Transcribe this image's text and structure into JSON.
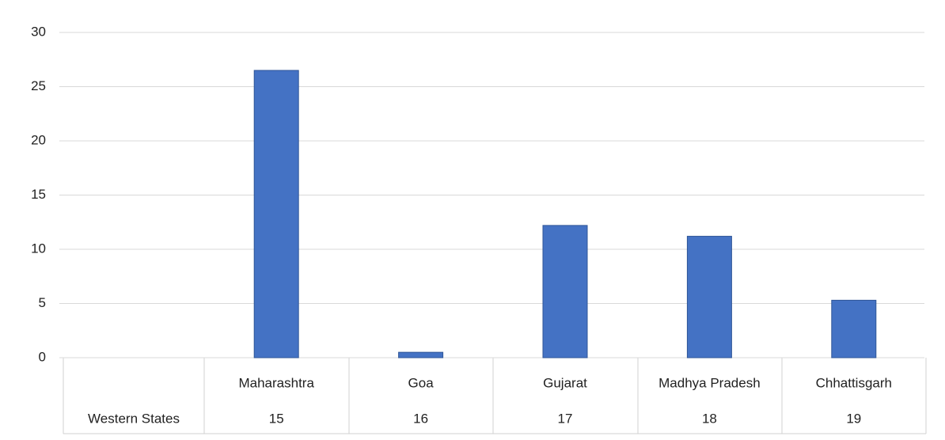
{
  "chart_data": {
    "type": "bar",
    "categories": [
      "Maharashtra",
      "Goa",
      "Gujarat",
      "Madhya Pradesh",
      "Chhattisgarh"
    ],
    "category_codes": [
      15,
      16,
      17,
      18,
      19
    ],
    "group_label": "Western States",
    "values": [
      26.5,
      0.5,
      12.2,
      11.2,
      5.3
    ],
    "color": "#4472c4",
    "ylim": [
      0,
      30
    ],
    "yticks": [
      0,
      5,
      10,
      15,
      20,
      25,
      30
    ],
    "grid": true
  }
}
